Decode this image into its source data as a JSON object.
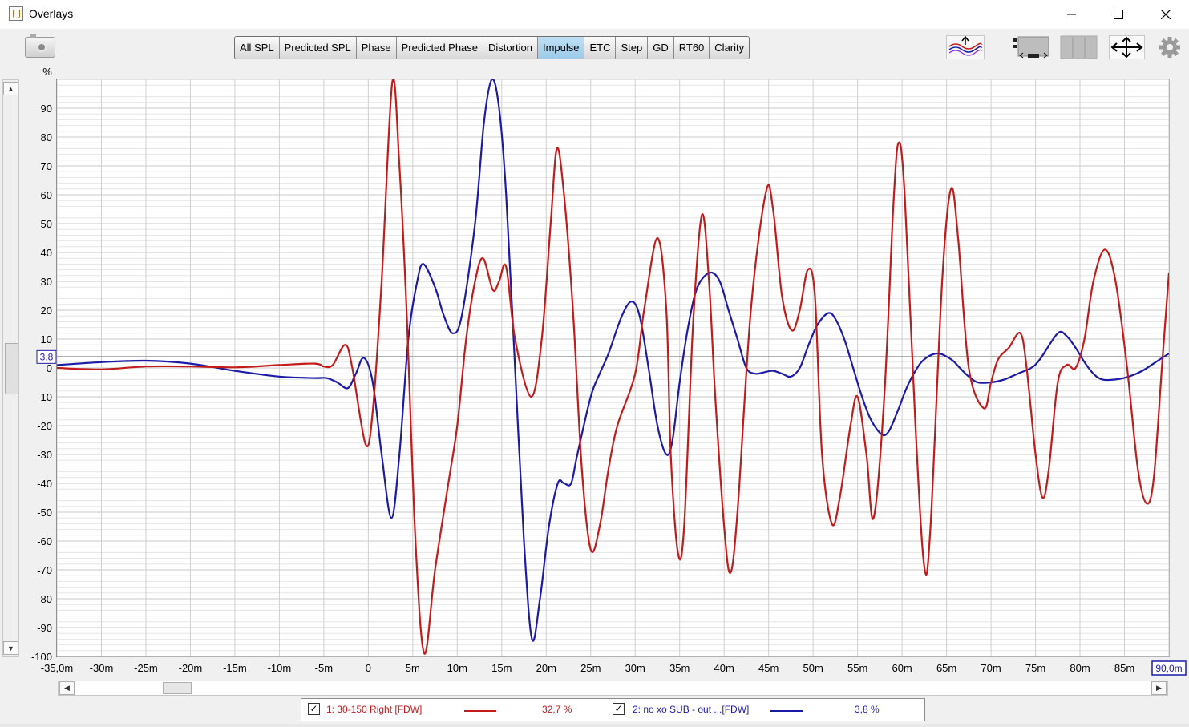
{
  "window": {
    "title": "Overlays"
  },
  "tabs": [
    {
      "label": "All SPL",
      "active": false
    },
    {
      "label": "Predicted SPL",
      "active": false
    },
    {
      "label": "Phase",
      "active": false
    },
    {
      "label": "Predicted Phase",
      "active": false
    },
    {
      "label": "Distortion",
      "active": false
    },
    {
      "label": "Impulse",
      "active": true
    },
    {
      "label": "ETC",
      "active": false
    },
    {
      "label": "Step",
      "active": false
    },
    {
      "label": "GD",
      "active": false
    },
    {
      "label": "RT60",
      "active": false
    },
    {
      "label": "Clarity",
      "active": false
    }
  ],
  "icons": {
    "camera": "camera-icon",
    "traces": "traces-icon",
    "legend_position": "legend-position-icon",
    "controls": "controls-icon",
    "fit": "fit-arrows-icon",
    "settings": "gear-icon"
  },
  "markers": {
    "y_marker": "3,8",
    "x_marker": "90,0m"
  },
  "legend": {
    "entries": [
      {
        "label": "1: 30-150 Right [FDW]",
        "value": "32,7 %",
        "checked": true,
        "color": "#c41a1a"
      },
      {
        "label": "2: no xo SUB - out ...[FDW]",
        "value": "3,8 %",
        "checked": true,
        "color": "#1b1ba8"
      }
    ]
  },
  "chart_data": {
    "type": "line",
    "ylabel": "%",
    "ylim": [
      -100,
      100
    ],
    "xlim": [
      -35,
      90
    ],
    "x_unit": "ms",
    "yticks": [
      -100,
      -90,
      -80,
      -70,
      -60,
      -50,
      -40,
      -30,
      -20,
      -10,
      0,
      10,
      20,
      30,
      40,
      50,
      60,
      70,
      80,
      90
    ],
    "ytick_labels": [
      "-100",
      "-90",
      "-80",
      "-70",
      "-60",
      "-50",
      "-40",
      "-30",
      "-20",
      "-10",
      "0",
      "10",
      "20",
      "30",
      "40",
      "50",
      "60",
      "70",
      "80",
      "90"
    ],
    "xticks": [
      -35,
      -30,
      -25,
      -20,
      -15,
      -10,
      -5,
      0,
      5,
      10,
      15,
      20,
      25,
      30,
      35,
      40,
      45,
      50,
      55,
      60,
      65,
      70,
      75,
      80,
      85
    ],
    "xtick_labels": [
      "-35,0m",
      "-30m",
      "-25m",
      "-20m",
      "-15m",
      "-10m",
      "-5m",
      "0",
      "5m",
      "10m",
      "15m",
      "20m",
      "25m",
      "30m",
      "35m",
      "40m",
      "45m",
      "50m",
      "55m",
      "60m",
      "65m",
      "70m",
      "75m",
      "80m",
      "85m"
    ],
    "reference_line_y": 3.8,
    "grid": true,
    "series": [
      {
        "name": "1: 30-150 Right [FDW]",
        "color": "#c41a1a",
        "points": [
          [
            -35,
            0
          ],
          [
            -30,
            -0.5
          ],
          [
            -25,
            0.5
          ],
          [
            -20,
            0.5
          ],
          [
            -15,
            0.2
          ],
          [
            -10,
            1
          ],
          [
            -6,
            1.5
          ],
          [
            -5,
            0.5
          ],
          [
            -4,
            1
          ],
          [
            -2.6,
            8
          ],
          [
            -1.8,
            0
          ],
          [
            -0.3,
            -26.5
          ],
          [
            0.5,
            -15
          ],
          [
            1.5,
            30
          ],
          [
            2.7,
            99
          ],
          [
            3.5,
            70
          ],
          [
            4.3,
            20
          ],
          [
            5.3,
            -60
          ],
          [
            6.3,
            -99
          ],
          [
            7.5,
            -70
          ],
          [
            9,
            -40
          ],
          [
            10,
            -20
          ],
          [
            11,
            10
          ],
          [
            12,
            30
          ],
          [
            12.9,
            38
          ],
          [
            14,
            27
          ],
          [
            14.7,
            30
          ],
          [
            15.5,
            35
          ],
          [
            16.5,
            10
          ],
          [
            18.3,
            -10
          ],
          [
            19.5,
            10
          ],
          [
            20.5,
            50
          ],
          [
            21.2,
            76
          ],
          [
            22,
            60
          ],
          [
            23,
            20
          ],
          [
            24,
            -35
          ],
          [
            25,
            -63
          ],
          [
            26,
            -55
          ],
          [
            27,
            -35
          ],
          [
            28,
            -20
          ],
          [
            30,
            -2
          ],
          [
            31,
            20
          ],
          [
            32.5,
            45
          ],
          [
            33.5,
            20
          ],
          [
            34,
            -30
          ],
          [
            34.8,
            -64
          ],
          [
            35.5,
            -55
          ],
          [
            36.5,
            15
          ],
          [
            37.5,
            53
          ],
          [
            38.3,
            30
          ],
          [
            39,
            -10
          ],
          [
            40,
            -55
          ],
          [
            40.7,
            -71
          ],
          [
            41.5,
            -50
          ],
          [
            43,
            20
          ],
          [
            44.7,
            61
          ],
          [
            45.5,
            55
          ],
          [
            46.5,
            25
          ],
          [
            47.6,
            13
          ],
          [
            48.5,
            20
          ],
          [
            49.4,
            34
          ],
          [
            50.2,
            25
          ],
          [
            51,
            -30
          ],
          [
            52.1,
            -54
          ],
          [
            53,
            -45
          ],
          [
            54.2,
            -20
          ],
          [
            55,
            -10
          ],
          [
            56,
            -30
          ],
          [
            56.8,
            -52
          ],
          [
            58,
            -10
          ],
          [
            59,
            55
          ],
          [
            59.6,
            78
          ],
          [
            60.3,
            60
          ],
          [
            61.5,
            -20
          ],
          [
            62.5,
            -69
          ],
          [
            63.2,
            -55
          ],
          [
            64.5,
            30
          ],
          [
            65.5,
            62
          ],
          [
            66.3,
            45
          ],
          [
            67.5,
            0
          ],
          [
            69.2,
            -14
          ],
          [
            70,
            -5
          ],
          [
            70.8,
            3
          ],
          [
            72,
            7
          ],
          [
            73.3,
            12
          ],
          [
            74,
            0
          ],
          [
            75,
            -30
          ],
          [
            75.8,
            -45
          ],
          [
            76.5,
            -35
          ],
          [
            77.5,
            -5
          ],
          [
            78.5,
            1
          ],
          [
            79.5,
            0
          ],
          [
            80.5,
            10
          ],
          [
            81.5,
            30
          ],
          [
            82.8,
            41
          ],
          [
            84,
            30
          ],
          [
            85.3,
            0
          ],
          [
            86.5,
            -35
          ],
          [
            87.5,
            -47
          ],
          [
            88.3,
            -38
          ],
          [
            89.2,
            0
          ],
          [
            90,
            33
          ]
        ]
      },
      {
        "name": "2: no xo SUB - out ...[FDW]",
        "color": "#1b1ba8",
        "points": [
          [
            -35,
            1
          ],
          [
            -30,
            2
          ],
          [
            -25,
            2.5
          ],
          [
            -20,
            1.5
          ],
          [
            -15,
            -1
          ],
          [
            -10,
            -3
          ],
          [
            -6,
            -3.5
          ],
          [
            -4.7,
            -3.5
          ],
          [
            -3.5,
            -5
          ],
          [
            -2.3,
            -7
          ],
          [
            -1.4,
            -2
          ],
          [
            -0.5,
            3.5
          ],
          [
            0.5,
            -5
          ],
          [
            1.5,
            -30
          ],
          [
            2.6,
            -52
          ],
          [
            3.5,
            -30
          ],
          [
            4.5,
            10
          ],
          [
            5.5,
            30
          ],
          [
            6.2,
            36
          ],
          [
            7.5,
            28
          ],
          [
            8.5,
            18
          ],
          [
            9.5,
            12
          ],
          [
            10.5,
            18
          ],
          [
            12,
            50
          ],
          [
            13,
            85
          ],
          [
            13.9,
            100
          ],
          [
            14.7,
            90
          ],
          [
            15.5,
            60
          ],
          [
            16.5,
            0
          ],
          [
            17.5,
            -60
          ],
          [
            18.4,
            -94
          ],
          [
            19.3,
            -80
          ],
          [
            20.3,
            -55
          ],
          [
            21.3,
            -40
          ],
          [
            22,
            -40
          ],
          [
            22.8,
            -40
          ],
          [
            23.5,
            -30
          ],
          [
            25,
            -10
          ],
          [
            26,
            -2
          ],
          [
            27,
            5
          ],
          [
            28.5,
            18
          ],
          [
            29.6,
            23
          ],
          [
            30.5,
            18
          ],
          [
            31.5,
            0
          ],
          [
            32.5,
            -20
          ],
          [
            33.5,
            -30
          ],
          [
            34.2,
            -25
          ],
          [
            35,
            -5
          ],
          [
            36,
            15
          ],
          [
            37,
            28
          ],
          [
            38.4,
            33
          ],
          [
            39.5,
            30
          ],
          [
            40.5,
            20
          ],
          [
            41.5,
            10
          ],
          [
            42.5,
            0
          ],
          [
            43.5,
            -2
          ],
          [
            44.5,
            -1.5
          ],
          [
            45.5,
            -1
          ],
          [
            46.5,
            -2
          ],
          [
            47.5,
            -3
          ],
          [
            48.5,
            0
          ],
          [
            49.5,
            8
          ],
          [
            50.5,
            15
          ],
          [
            51.7,
            19
          ],
          [
            52.5,
            17
          ],
          [
            53.5,
            10
          ],
          [
            54.5,
            0
          ],
          [
            55.5,
            -10
          ],
          [
            56.5,
            -18
          ],
          [
            57.7,
            -23
          ],
          [
            58.5,
            -22
          ],
          [
            59.5,
            -15
          ],
          [
            60.5,
            -7
          ],
          [
            61.5,
            -1
          ],
          [
            62.5,
            3
          ],
          [
            64,
            5
          ],
          [
            65.5,
            3
          ],
          [
            66.5,
            0
          ],
          [
            67.5,
            -3
          ],
          [
            68.5,
            -5
          ],
          [
            70,
            -5
          ],
          [
            71.5,
            -4
          ],
          [
            73,
            -2
          ],
          [
            74.5,
            0
          ],
          [
            75.5,
            3
          ],
          [
            77.5,
            12
          ],
          [
            78.5,
            11
          ],
          [
            79.5,
            7
          ],
          [
            80.5,
            2
          ],
          [
            81.5,
            -2
          ],
          [
            82.5,
            -4
          ],
          [
            84,
            -4
          ],
          [
            85.5,
            -3
          ],
          [
            87,
            -1
          ],
          [
            88.5,
            2
          ],
          [
            90,
            5
          ]
        ]
      }
    ]
  }
}
